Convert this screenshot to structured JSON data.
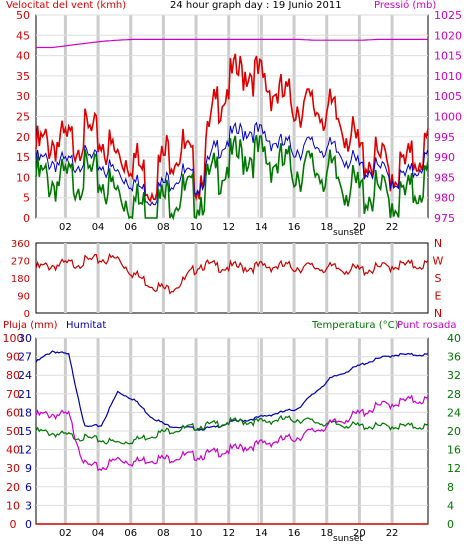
{
  "header": {
    "left_label": "Velocitat del vent (kmh)",
    "title": "24 hour graph day : 19 Junio 2011",
    "right_label": "Pressió (mb)"
  },
  "panel3_header": {
    "rain_label": "Pluja (mm)",
    "humidity_label": "Humitat",
    "temp_label": "Temperatura (°C)",
    "dew_label": "Punt rosada"
  },
  "x_ticks": [
    "02",
    "04",
    "06",
    "08",
    "10",
    "12",
    "14",
    "16",
    "18",
    "sunset",
    "20",
    "22"
  ],
  "colors": {
    "wind": "#dd0000",
    "avg_wind": "#0000cc",
    "wind_low": "#007700",
    "pressure": "#cc00cc",
    "direction": "#cc0000",
    "humidity": "#0000aa",
    "temperature": "#007700",
    "dew": "#cc00cc",
    "rain": "#cc0000",
    "grid": "#cccccc",
    "frame": "#000000"
  },
  "chart_data": [
    {
      "type": "line",
      "title": "24 hour graph day : 19 Junio 2011",
      "ylabel": "Velocitat del vent (kmh)",
      "y2label": "Pressió (mb)",
      "ylim": [
        0,
        50
      ],
      "y2lim": [
        975,
        1025
      ],
      "y_ticks": [
        "0",
        "5",
        "10",
        "15",
        "20",
        "25",
        "30",
        "35",
        "40",
        "45",
        "50"
      ],
      "y2_ticks": [
        "975",
        "980",
        "985",
        "990",
        "995",
        "1000",
        "1005",
        "1010",
        "1015",
        "1020",
        "1025"
      ],
      "x": [
        0,
        1,
        2,
        3,
        4,
        5,
        6,
        7,
        8,
        9,
        10,
        11,
        12,
        13,
        14,
        15,
        16,
        17,
        18,
        19,
        20,
        21,
        22,
        23,
        24
      ],
      "series": [
        {
          "name": "gust",
          "values": [
            17,
            19,
            18,
            21,
            19,
            15,
            15,
            8,
            16,
            17,
            9,
            28,
            34,
            37,
            33,
            30,
            28,
            27,
            26,
            22,
            15,
            14,
            11,
            14,
            18
          ]
        },
        {
          "name": "avg",
          "values": [
            14,
            14,
            13,
            15,
            13,
            11,
            9,
            5,
            9,
            11,
            8,
            17,
            20,
            22,
            20,
            18,
            17,
            18,
            17,
            15,
            12,
            12,
            9,
            11,
            15
          ]
        },
        {
          "name": "low",
          "values": [
            10,
            9,
            9,
            11,
            9,
            6,
            4,
            2,
            5,
            6,
            5,
            11,
            14,
            16,
            15,
            13,
            12,
            12,
            11,
            8,
            6,
            6,
            4,
            6,
            10
          ]
        },
        {
          "name": "pressure",
          "values": [
            1017,
            1017,
            1017.5,
            1018,
            1018.5,
            1018.8,
            1019,
            1019,
            1019,
            1019,
            1019,
            1019,
            1019,
            1019,
            1019,
            1019,
            1019,
            1018.8,
            1018.8,
            1018.8,
            1018.8,
            1019,
            1019,
            1019,
            1019
          ]
        }
      ]
    },
    {
      "type": "line",
      "ylabel_labels": [
        "N",
        "W",
        "S",
        "E",
        "N"
      ],
      "ylim": [
        0,
        360
      ],
      "y_ticks": [
        "0",
        "90",
        "180",
        "270",
        "360"
      ],
      "x": [
        0,
        1,
        2,
        3,
        4,
        5,
        6,
        7,
        8,
        9,
        10,
        11,
        12,
        13,
        14,
        15,
        16,
        17,
        18,
        19,
        20,
        21,
        22,
        23,
        24
      ],
      "series": [
        {
          "name": "direction",
          "values": [
            230,
            245,
            250,
            265,
            275,
            280,
            200,
            150,
            120,
            160,
            250,
            240,
            235,
            235,
            240,
            240,
            235,
            235,
            230,
            225,
            220,
            230,
            245,
            245,
            250
          ]
        }
      ]
    },
    {
      "type": "line",
      "ylabel": "Pluja (mm)",
      "ylim": [
        0,
        100
      ],
      "y_ticks": [
        "0",
        "10",
        "20",
        "30",
        "40",
        "50",
        "60",
        "70",
        "80",
        "90",
        "100"
      ],
      "y2_ticks": [
        "0",
        "3",
        "6",
        "9",
        "12",
        "15",
        "18",
        "21",
        "24",
        "27",
        "30"
      ],
      "y3_ticks": [
        "0",
        "4",
        "8",
        "12",
        "16",
        "20",
        "24",
        "28",
        "32",
        "36",
        "40"
      ],
      "x": [
        0,
        1,
        2,
        3,
        4,
        5,
        6,
        7,
        8,
        9,
        10,
        11,
        12,
        13,
        14,
        15,
        16,
        17,
        18,
        19,
        20,
        21,
        22,
        23,
        24
      ],
      "series": [
        {
          "name": "humidity",
          "values": [
            87,
            93,
            91,
            52,
            53,
            71,
            67,
            58,
            53,
            52,
            51,
            52,
            55,
            56,
            58,
            60,
            62,
            70,
            78,
            82,
            86,
            89,
            91,
            91,
            91
          ]
        },
        {
          "name": "temperature",
          "values": [
            20,
            19.5,
            19,
            18.5,
            18,
            17.5,
            18,
            19,
            20,
            20.5,
            21,
            21.5,
            22,
            22,
            22,
            22.5,
            22.5,
            22,
            21.5,
            21.3,
            21,
            21,
            21,
            21,
            21
          ]
        },
        {
          "name": "dew",
          "values": [
            17.5,
            17.7,
            17.5,
            9.5,
            9.0,
            10.5,
            10,
            10.5,
            10.5,
            11,
            11,
            11.5,
            12,
            12.5,
            13,
            13.5,
            14,
            15,
            16,
            17,
            18,
            19,
            19.5,
            20,
            20
          ]
        },
        {
          "name": "rain",
          "values": [
            0,
            0,
            0,
            0,
            0,
            0,
            0,
            0,
            0,
            0,
            0,
            0,
            0,
            0,
            0,
            0,
            0,
            0,
            0,
            0,
            0,
            0,
            0,
            0,
            0
          ]
        }
      ]
    }
  ]
}
